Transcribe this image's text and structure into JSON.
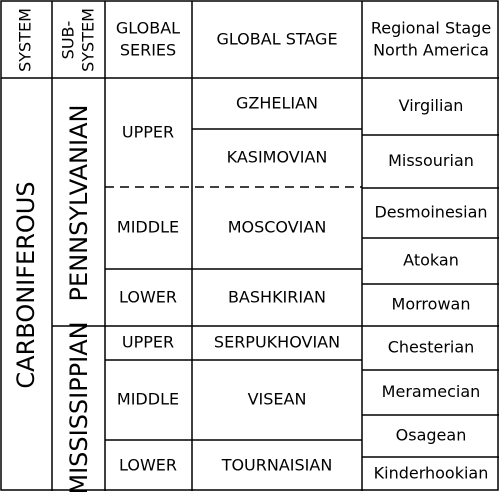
{
  "header": {
    "system": "SYSTEM",
    "subsystem": [
      "SUB-",
      "SYSTEM"
    ],
    "series": [
      "GLOBAL",
      "SERIES"
    ],
    "stage": "GLOBAL STAGE",
    "regional": [
      "Regional Stage",
      "North America"
    ]
  },
  "system": "CARBONIFEROUS",
  "subsystems": [
    "PENNSYLVANIAN",
    "MISSISSIPPIAN"
  ],
  "series": [
    "UPPER",
    "MIDDLE",
    "LOWER",
    "UPPER",
    "MIDDLE",
    "LOWER"
  ],
  "stages": [
    "GZHELIAN",
    "KASIMOVIAN",
    "MOSCOVIAN",
    "BASHKIRIAN",
    "SERPUKHOVIAN",
    "VISEAN",
    "TOURNAISIAN"
  ],
  "regional_stages": [
    "Virgilian",
    "Missourian",
    "Desmoinesian",
    "Atokan",
    "Morrowan",
    "Chesterian",
    "Meramecian",
    "Osagean",
    "Kinderhookian"
  ]
}
